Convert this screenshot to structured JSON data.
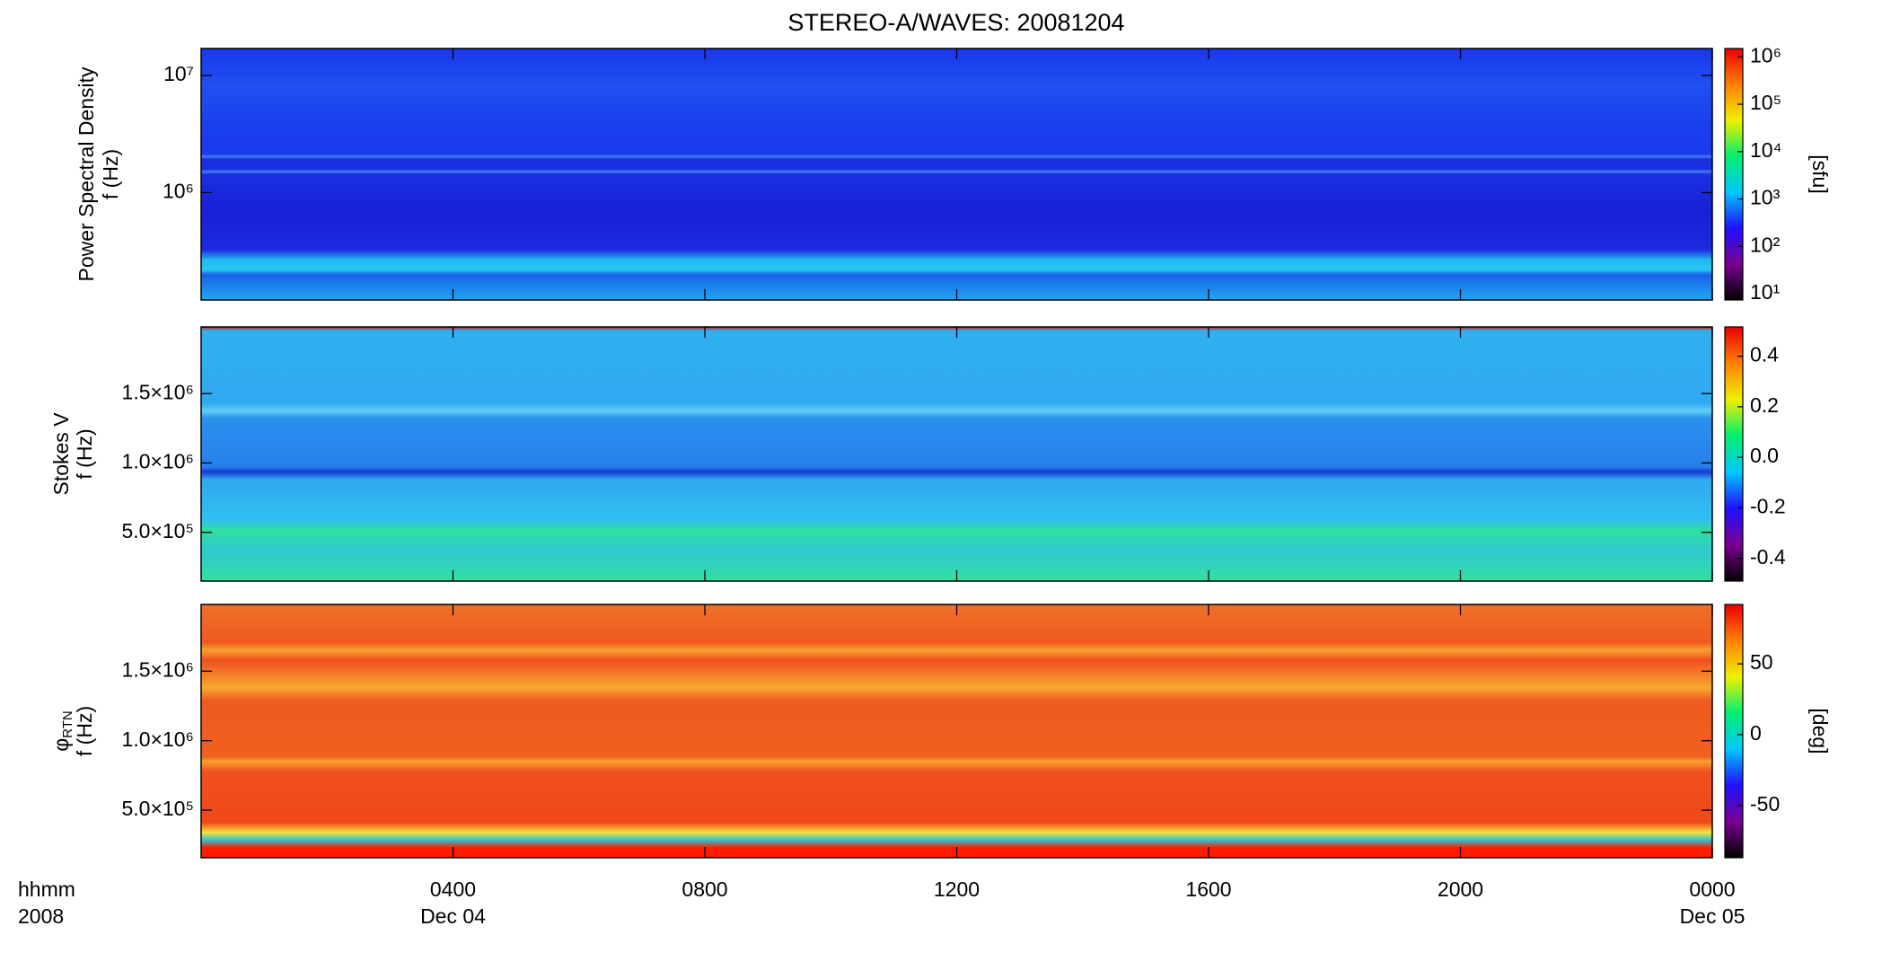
{
  "chart_data": [
    {
      "type": "spectrogram",
      "title": "STEREO-A/WAVES: 20081204",
      "ylabel": [
        "Power Spectral Density",
        "f (Hz)"
      ],
      "ylog": true,
      "ylim": [
        121000,
        17000000
      ],
      "yticks": [
        {
          "value": 1000000,
          "label": "10⁶"
        },
        {
          "value": 10000000,
          "label": "10⁷"
        }
      ],
      "zlog": true,
      "zlim": [
        7.4,
        1500000
      ],
      "zticks": [
        {
          "value": 10,
          "label": "10¹"
        },
        {
          "value": 100,
          "label": "10²"
        },
        {
          "value": 1000,
          "label": "10³"
        },
        {
          "value": 10000,
          "label": "10⁴"
        },
        {
          "value": 100000,
          "label": "10⁵"
        },
        {
          "value": 1000000,
          "label": "10⁶"
        }
      ],
      "zlabel": "[sfu]",
      "colormap": [
        "#000000",
        "#7a0090",
        "#2010ff",
        "#00c8ff",
        "#00f070",
        "#f0f000",
        "#ff8000",
        "#e80000"
      ]
    },
    {
      "type": "spectrogram",
      "ylabel": [
        "Stokes V",
        "f (Hz)"
      ],
      "ylog": false,
      "ylim": [
        149000,
        1980000
      ],
      "yticks": [
        {
          "value": 500000,
          "label": "5.0×10⁵"
        },
        {
          "value": 1000000,
          "label": "1.0×10⁶"
        },
        {
          "value": 1500000,
          "label": "1.5×10⁶"
        }
      ],
      "zlog": false,
      "zlim": [
        -0.49,
        0.516
      ],
      "zticks": [
        -0.4,
        -0.2,
        {
          "value": 0,
          "label": "0.0"
        },
        0.2,
        0.4
      ],
      "colormap": [
        "#000000",
        "#7a0090",
        "#2010ff",
        "#00c8ff",
        "#00f070",
        "#f0f000",
        "#ff8000",
        "#e80000"
      ]
    },
    {
      "type": "spectrogram",
      "ylabel_symbol": "φ",
      "ylabel_sub": "RTN",
      "ylabel": [
        "f (Hz)"
      ],
      "ylog": false,
      "ylim": [
        158000,
        1980000
      ],
      "yticks": [
        {
          "value": 500000,
          "label": "5.0×10⁵"
        },
        {
          "value": 1000000,
          "label": "1.0×10⁶"
        },
        {
          "value": 1500000,
          "label": "1.5×10⁶"
        }
      ],
      "zlog": false,
      "zlim": [
        -87,
        92
      ],
      "zticks": [
        -50,
        0,
        50
      ],
      "zlabel": "[deg]",
      "colormap": [
        "#000000",
        "#7a0090",
        "#2010ff",
        "#00c8ff",
        "#00f070",
        "#f0f000",
        "#ff8000",
        "#e80000"
      ],
      "xlabel": [
        "hhmm",
        "2008"
      ],
      "xlim": [
        0,
        24
      ],
      "xticks": [
        {
          "value": 4,
          "label": "0400"
        },
        {
          "value": 8,
          "label": "0800"
        },
        {
          "value": 12,
          "label": "1200"
        },
        {
          "value": 16,
          "label": "1600"
        },
        {
          "value": 20,
          "label": "2000"
        },
        {
          "value": 24,
          "label": "0000"
        }
      ],
      "date_labels": [
        {
          "value": 4,
          "label": "Dec 04"
        },
        {
          "value": 24,
          "label": "Dec 05"
        }
      ]
    }
  ]
}
